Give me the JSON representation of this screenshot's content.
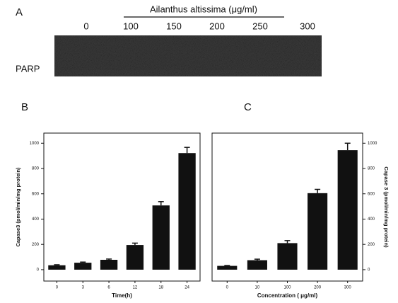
{
  "blot": {
    "panel_label": "A",
    "title": "Ailanthus altissima (μg/ml)",
    "lanes": [
      "0",
      "100",
      "150",
      "200",
      "250",
      "300"
    ],
    "band_label": "PARP"
  },
  "chart_data": [
    {
      "type": "bar",
      "panel_label": "B",
      "x_label": "Time(h)",
      "y_label": "Capase3 (pmol/min/mg protein)",
      "categories": [
        "0",
        "3",
        "6",
        "12",
        "18",
        "24"
      ],
      "values": [
        35,
        55,
        78,
        195,
        508,
        922
      ],
      "errors": [
        4,
        5,
        6,
        15,
        30,
        45
      ],
      "color": "#111111",
      "ylim": [
        -90,
        1080
      ],
      "yticks": [
        0,
        200,
        400,
        600,
        800,
        1000
      ],
      "y_axis_side": "left"
    },
    {
      "type": "bar",
      "panel_label": "C",
      "x_label": "Concentration ( μg/ml)",
      "y_label": "Capase 3 (pmol/min/mg protein)",
      "categories": [
        "0",
        "10",
        "100",
        "200",
        "300"
      ],
      "values": [
        30,
        75,
        210,
        605,
        945
      ],
      "errors": [
        3,
        8,
        20,
        30,
        55
      ],
      "color": "#111111",
      "ylim": [
        -90,
        1080
      ],
      "yticks": [
        0,
        200,
        400,
        600,
        800,
        1000
      ],
      "y_axis_side": "right"
    }
  ]
}
